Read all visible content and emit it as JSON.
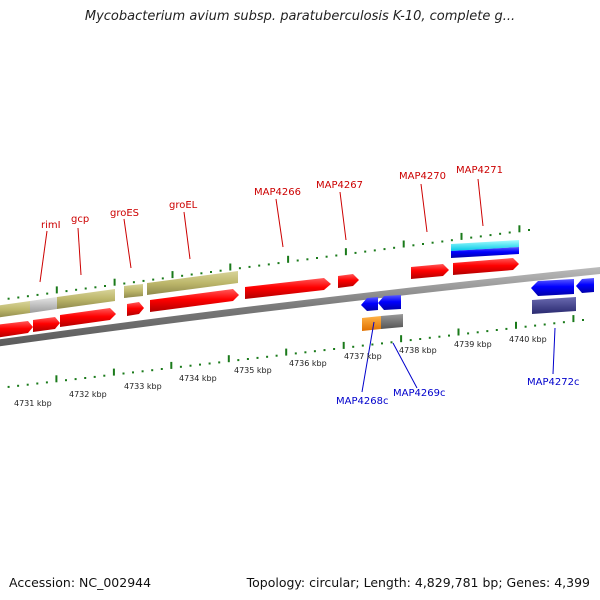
{
  "title": "Mycobacterium avium subsp. paratuberculosis K-10, complete g...",
  "footer": {
    "accession": "Accession: NC_002944",
    "summary": "Topology: circular; Length: 4,829,781 bp; Genes: 4,399"
  },
  "colors": {
    "forward_label": "#cc0000",
    "reverse_label": "#0000cc",
    "forward_gene": "#ff0000",
    "reverse_gene": "#0000ff",
    "tick": "#1a7a1a",
    "backbone": "#888888"
  },
  "forward_labels": [
    "rimI",
    "gcp",
    "groES",
    "groEL",
    "MAP4266",
    "MAP4267",
    "MAP4270",
    "MAP4271"
  ],
  "reverse_labels": [
    "MAP4268c",
    "MAP4269c",
    "MAP4272c"
  ],
  "kbp_labels": [
    "4731 kbp",
    "4732 kbp",
    "4733 kbp",
    "4734 kbp",
    "4735 kbp",
    "4736 kbp",
    "4737 kbp",
    "4738 kbp",
    "4739 kbp",
    "4740 kbp"
  ]
}
